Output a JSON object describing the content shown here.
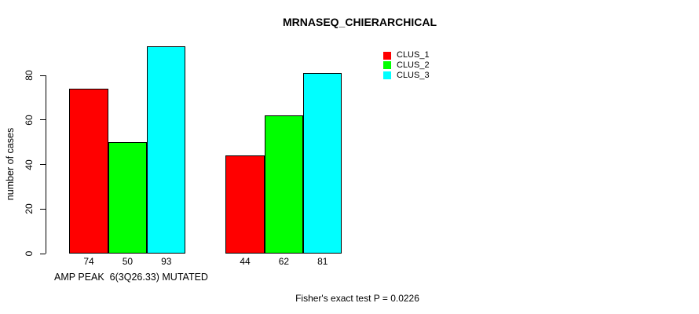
{
  "chart_data": {
    "type": "bar",
    "title": "MRNASEQ_CHIERARCHICAL",
    "ylabel": "number of cases",
    "xlabel": "AMP PEAK  6(3Q26.33) MUTATED",
    "annotation": "Fisher's exact test P = 0.0226",
    "yticks": [
      0,
      20,
      40,
      60,
      80
    ],
    "ylim": [
      0,
      93
    ],
    "grid": false,
    "legend_position": "top-right",
    "background_color": "#ffffff",
    "bar_border_color": "#000000",
    "groups": [
      "group-1",
      "group-2"
    ],
    "series": [
      {
        "name": "CLUS_1",
        "color": "#FF0000",
        "values": [
          74,
          44
        ]
      },
      {
        "name": "CLUS_2",
        "color": "#00FF00",
        "values": [
          50,
          62
        ]
      },
      {
        "name": "CLUS_3",
        "color": "#00FFFF",
        "values": [
          93,
          81
        ]
      }
    ],
    "bar_value_labels": [
      [
        74,
        50,
        93
      ],
      [
        44,
        62,
        81
      ]
    ]
  }
}
